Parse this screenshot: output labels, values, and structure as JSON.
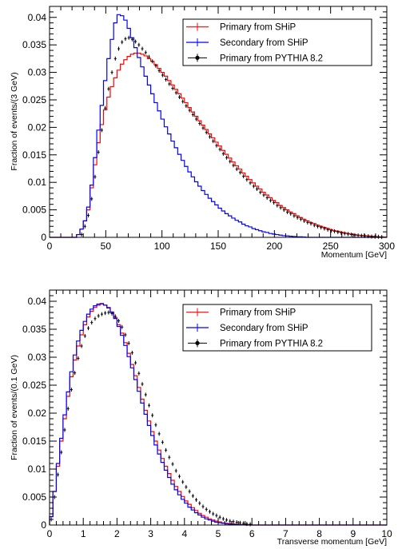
{
  "chart_data": [
    {
      "type": "line",
      "xlabel": "Momentum [GeV]",
      "ylabel": "Fraction of events/(3 GeV)",
      "xlim": [
        0,
        300
      ],
      "ylim": [
        0,
        0.042
      ],
      "xticks": [
        "0",
        "50",
        "100",
        "150",
        "200",
        "250",
        "300"
      ],
      "yticks": [
        "0",
        "0.005",
        "0.01",
        "0.015",
        "0.02",
        "0.025",
        "0.03",
        "0.035",
        "0.04"
      ],
      "legend_position": "top-right",
      "legend": [
        {
          "label": "Primary from SHiP",
          "color": "#ff0000",
          "style": "line"
        },
        {
          "label": "Secondary from SHiP",
          "color": "#0000ff",
          "style": "line"
        },
        {
          "label": "Primary from PYTHIA 8.2",
          "color": "#000000",
          "style": "marker"
        }
      ],
      "series": [
        {
          "name": "Primary from SHiP",
          "color": "#ff0000",
          "render": "step",
          "bin_width": 3,
          "bin_start": 0,
          "values": [
            0,
            0,
            0,
            0,
            0,
            0,
            0,
            0,
            0.0005,
            0.0015,
            0.003,
            0.005,
            0.009,
            0.0132,
            0.0172,
            0.0205,
            0.0232,
            0.0255,
            0.0274,
            0.029,
            0.0304,
            0.0315,
            0.0323,
            0.0329,
            0.0333,
            0.0335,
            0.0335,
            0.0333,
            0.033,
            0.0325,
            0.032,
            0.0314,
            0.0307,
            0.03,
            0.0293,
            0.0285,
            0.0277,
            0.0269,
            0.0261,
            0.0253,
            0.0245,
            0.0236,
            0.0228,
            0.022,
            0.0212,
            0.0204,
            0.0196,
            0.0188,
            0.0181,
            0.0173,
            0.0166,
            0.0158,
            0.0151,
            0.0144,
            0.0137,
            0.013,
            0.0124,
            0.0117,
            0.0111,
            0.0105,
            0.0099,
            0.0093,
            0.0088,
            0.0082,
            0.0077,
            0.0072,
            0.0067,
            0.0063,
            0.0058,
            0.0054,
            0.005,
            0.0046,
            0.0043,
            0.0039,
            0.0036,
            0.0033,
            0.003,
            0.0027,
            0.0025,
            0.0022,
            0.002,
            0.0018,
            0.0016,
            0.0014,
            0.0012,
            0.0011,
            0.00095,
            0.0008,
            0.0007,
            0.0006,
            0.0005,
            0.0004,
            0.00035,
            0.0003,
            0.00025,
            0.0002,
            0.00015,
            0.0001,
            0.0001,
            5e-05
          ]
        },
        {
          "name": "Secondary from SHiP",
          "color": "#0000ff",
          "render": "step",
          "bin_width": 3,
          "bin_start": 0,
          "values": [
            0,
            0,
            0,
            0,
            0,
            0,
            0,
            0,
            0.0005,
            0.0015,
            0.003,
            0.0055,
            0.0095,
            0.0145,
            0.0195,
            0.024,
            0.0285,
            0.0325,
            0.036,
            0.039,
            0.0405,
            0.0403,
            0.0395,
            0.038,
            0.0363,
            0.0345,
            0.0327,
            0.031,
            0.0293,
            0.0277,
            0.0261,
            0.0245,
            0.023,
            0.0215,
            0.0201,
            0.0188,
            0.0175,
            0.0163,
            0.0151,
            0.014,
            0.0129,
            0.0119,
            0.011,
            0.0101,
            0.0093,
            0.0085,
            0.0078,
            0.0071,
            0.0065,
            0.0059,
            0.0053,
            0.0048,
            0.0043,
            0.0039,
            0.0035,
            0.0031,
            0.0028,
            0.0024,
            0.0021,
            0.0019,
            0.0016,
            0.0014,
            0.0012,
            0.001,
            0.0009,
            0.0007,
            0.0006,
            0.0005,
            0.0004,
            0.0003,
            0.00025,
            0.0002,
            0.00015,
            0.0001,
            0.0001,
            5e-05
          ]
        },
        {
          "name": "Primary from PYTHIA 8.2",
          "color": "#000000",
          "render": "markers",
          "bin_width": 3,
          "bin_start": 0,
          "values": [
            0,
            0,
            0,
            0,
            0,
            0,
            0,
            0,
            0,
            0.0005,
            0.002,
            0.004,
            0.007,
            0.011,
            0.0155,
            0.0195,
            0.0235,
            0.027,
            0.03,
            0.0325,
            0.0343,
            0.0355,
            0.0361,
            0.0363,
            0.036,
            0.0356,
            0.035,
            0.0343,
            0.0336,
            0.0328,
            0.032,
            0.0312,
            0.0303,
            0.0295,
            0.0287,
            0.0279,
            0.0271,
            0.0263,
            0.0255,
            0.0247,
            0.0239,
            0.0231,
            0.0223,
            0.0215,
            0.0207,
            0.0199,
            0.0191,
            0.0183,
            0.0175,
            0.0167,
            0.016,
            0.0152,
            0.0145,
            0.0138,
            0.0131,
            0.0124,
            0.0118,
            0.0111,
            0.0105,
            0.0099,
            0.0093,
            0.0088,
            0.0082,
            0.0077,
            0.0072,
            0.0067,
            0.0063,
            0.0058,
            0.0054,
            0.005,
            0.0046,
            0.0043,
            0.0039,
            0.0036,
            0.0033,
            0.003,
            0.0027,
            0.0025,
            0.0022,
            0.002,
            0.0018,
            0.0016,
            0.0014,
            0.0012,
            0.0011,
            0.00095,
            0.0008,
            0.0007,
            0.0006,
            0.0005,
            0.0004,
            0.00035,
            0.0003,
            0.00025,
            0.0002,
            0.00015,
            0.0001,
            0.0001,
            5e-05
          ]
        }
      ]
    },
    {
      "type": "line",
      "xlabel": "Transverse momentum [GeV]",
      "ylabel": "Fraction of events/(0.1 GeV)",
      "xlim": [
        0,
        10
      ],
      "ylim": [
        0,
        0.042
      ],
      "xticks": [
        "0",
        "1",
        "2",
        "3",
        "4",
        "5",
        "6",
        "7",
        "8",
        "9",
        "10"
      ],
      "yticks": [
        "0",
        "0.005",
        "0.01",
        "0.015",
        "0.02",
        "0.025",
        "0.03",
        "0.035",
        "0.04"
      ],
      "legend_position": "top-right",
      "legend": [
        {
          "label": "Primary from SHiP",
          "color": "#ff0000",
          "style": "line"
        },
        {
          "label": "Secondary from SHiP",
          "color": "#0000ff",
          "style": "line"
        },
        {
          "label": "Primary from PYTHIA 8.2",
          "color": "#000000",
          "style": "marker"
        }
      ],
      "series": [
        {
          "name": "Primary from SHiP",
          "color": "#ff0000",
          "render": "step",
          "bin_width": 0.1,
          "bin_start": 0,
          "values": [
            0.0015,
            0.006,
            0.0105,
            0.015,
            0.019,
            0.023,
            0.0265,
            0.0295,
            0.032,
            0.034,
            0.0358,
            0.0372,
            0.0382,
            0.0389,
            0.0393,
            0.0395,
            0.0393,
            0.0389,
            0.0381,
            0.0371,
            0.0358,
            0.0343,
            0.0326,
            0.0307,
            0.0287,
            0.0267,
            0.0246,
            0.0225,
            0.0205,
            0.0186,
            0.0167,
            0.015,
            0.0134,
            0.0119,
            0.0105,
            0.0092,
            0.008,
            0.0069,
            0.006,
            0.0051,
            0.0043,
            0.0037,
            0.0031,
            0.0026,
            0.0021,
            0.0017,
            0.0014,
            0.0011,
            0.0009,
            0.0007,
            0.00055,
            0.0004,
            0.0003,
            0.00025,
            0.0002,
            0.00015,
            0.0001,
            0.0001,
            5e-05,
            5e-05
          ]
        },
        {
          "name": "Secondary from SHiP",
          "color": "#0000ff",
          "render": "step",
          "bin_width": 0.1,
          "bin_start": 0,
          "values": [
            0.0015,
            0.006,
            0.011,
            0.0155,
            0.0197,
            0.0238,
            0.0274,
            0.0304,
            0.0329,
            0.0348,
            0.0364,
            0.0377,
            0.0386,
            0.0392,
            0.0395,
            0.0396,
            0.0393,
            0.0388,
            0.038,
            0.0369,
            0.0355,
            0.0339,
            0.0321,
            0.0301,
            0.0281,
            0.026,
            0.0239,
            0.0218,
            0.0198,
            0.0178,
            0.016,
            0.0143,
            0.0127,
            0.0112,
            0.0098,
            0.0085,
            0.0073,
            0.0063,
            0.0054,
            0.0046,
            0.0039,
            0.0032,
            0.0027,
            0.0022,
            0.0018,
            0.0014,
            0.0011,
            0.0009,
            0.0007,
            0.0005,
            0.0004,
            0.0003,
            0.0002,
            0.00015,
            0.0001,
            0.0001,
            5e-05,
            5e-05,
            0,
            0
          ]
        },
        {
          "name": "Primary from PYTHIA 8.2",
          "color": "#000000",
          "render": "markers",
          "bin_width": 0.1,
          "bin_start": 0,
          "values": [
            0.001,
            0.005,
            0.009,
            0.013,
            0.017,
            0.0208,
            0.0242,
            0.0272,
            0.0298,
            0.032,
            0.0338,
            0.0352,
            0.0362,
            0.0369,
            0.0374,
            0.0377,
            0.0379,
            0.038,
            0.0378,
            0.0373,
            0.0365,
            0.0354,
            0.034,
            0.0325,
            0.0308,
            0.029,
            0.0271,
            0.0252,
            0.0233,
            0.0214,
            0.0196,
            0.0179,
            0.0163,
            0.0148,
            0.0134,
            0.0121,
            0.0109,
            0.0097,
            0.0087,
            0.0077,
            0.0068,
            0.006,
            0.0052,
            0.0045,
            0.0039,
            0.0033,
            0.0028,
            0.0024,
            0.002,
            0.0017,
            0.0014,
            0.0011,
            0.0009,
            0.0007,
            0.0006,
            0.0005,
            0.0004,
            0.0003,
            0.0002,
            0.00015
          ]
        }
      ]
    }
  ]
}
